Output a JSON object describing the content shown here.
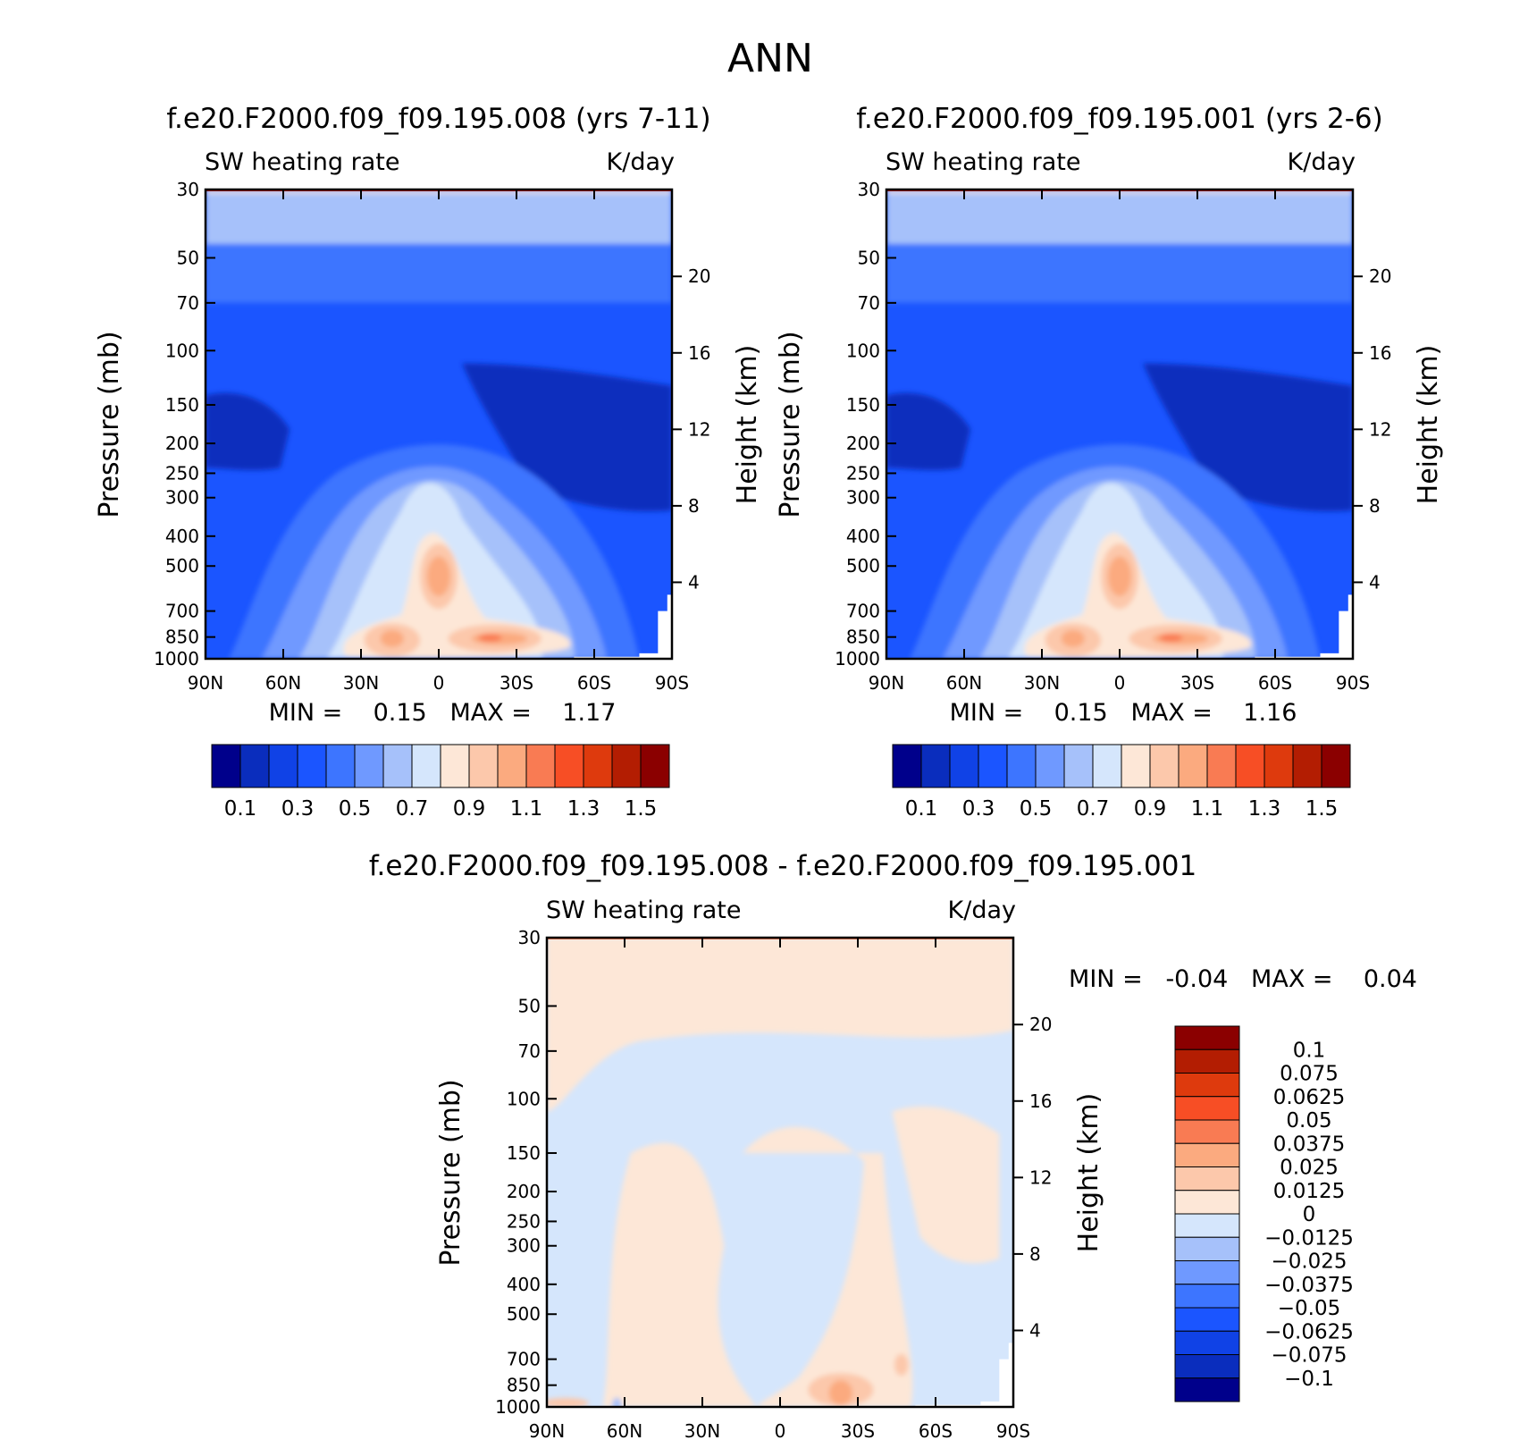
{
  "page_title": "ANN",
  "axes_common": {
    "pressure_ticks": [
      "30",
      "50",
      "70",
      "100",
      "150",
      "200",
      "250",
      "300",
      "400",
      "500",
      "700",
      "850",
      "1000"
    ],
    "height_ticks": [
      "20",
      "16",
      "12",
      "8",
      "4"
    ],
    "lat_ticks": [
      "90N",
      "60N",
      "30N",
      "0",
      "30S",
      "60S",
      "90S"
    ]
  },
  "chart_data": [
    {
      "type": "heatmap",
      "panel": "upper-left",
      "title": "f.e20.F2000.f09_f09.195.008 (yrs 7-11)",
      "left_string": "SW heating rate",
      "right_string": "K/day",
      "xlabel": "",
      "ylabel": "Pressure (mb)",
      "y2label": "Height (km)",
      "min_max_text": "MIN =    0.15   MAX =    1.17",
      "xlim": [
        "90N",
        "90S"
      ],
      "ylim": [
        1000,
        30
      ],
      "y_scale": "log",
      "colorbar": {
        "orientation": "horizontal",
        "labels": [
          "0.1",
          "0.3",
          "0.5",
          "0.7",
          "0.9",
          "1.1",
          "1.3",
          "1.5"
        ],
        "levels": [
          0.1,
          0.2,
          0.3,
          0.4,
          0.5,
          0.6,
          0.7,
          0.8,
          0.9,
          1.0,
          1.1,
          1.2,
          1.3,
          1.4,
          1.5
        ],
        "colors": [
          "#00008b",
          "#0a2dbd",
          "#1042e6",
          "#1b55ff",
          "#3d75ff",
          "#6f99ff",
          "#a6c1fa",
          "#d5e6fc",
          "#fde7d7",
          "#fcc8ab",
          "#fbaa7f",
          "#f97b53",
          "#f74e25",
          "#de3a0d",
          "#b31d02",
          "#8b0000"
        ]
      }
    },
    {
      "type": "heatmap",
      "panel": "upper-right",
      "title": "f.e20.F2000.f09_f09.195.001 (yrs 2-6)",
      "left_string": "SW heating rate",
      "right_string": "K/day",
      "xlabel": "",
      "ylabel": "Pressure (mb)",
      "y2label": "Height (km)",
      "min_max_text": "MIN =    0.15   MAX =    1.16",
      "xlim": [
        "90N",
        "90S"
      ],
      "ylim": [
        1000,
        30
      ],
      "y_scale": "log",
      "colorbar": {
        "orientation": "horizontal",
        "labels": [
          "0.1",
          "0.3",
          "0.5",
          "0.7",
          "0.9",
          "1.1",
          "1.3",
          "1.5"
        ],
        "levels": [
          0.1,
          0.2,
          0.3,
          0.4,
          0.5,
          0.6,
          0.7,
          0.8,
          0.9,
          1.0,
          1.1,
          1.2,
          1.3,
          1.4,
          1.5
        ],
        "colors": [
          "#00008b",
          "#0a2dbd",
          "#1042e6",
          "#1b55ff",
          "#3d75ff",
          "#6f99ff",
          "#a6c1fa",
          "#d5e6fc",
          "#fde7d7",
          "#fcc8ab",
          "#fbaa7f",
          "#f97b53",
          "#f74e25",
          "#de3a0d",
          "#b31d02",
          "#8b0000"
        ]
      }
    },
    {
      "type": "heatmap",
      "panel": "bottom-difference",
      "title": "f.e20.F2000.f09_f09.195.008 - f.e20.F2000.f09_f09.195.001",
      "left_string": "SW heating rate",
      "right_string": "K/day",
      "xlabel": "",
      "ylabel": "Pressure (mb)",
      "y2label": "Height (km)",
      "min_max_text": "MIN =   -0.04   MAX =    0.04",
      "xlim": [
        "90N",
        "90S"
      ],
      "ylim": [
        1000,
        30
      ],
      "y_scale": "log",
      "colorbar": {
        "orientation": "vertical",
        "labels": [
          "0.1",
          "0.075",
          "0.0625",
          "0.05",
          "0.0375",
          "0.025",
          "0.0125",
          "0",
          "-0.0125",
          "-0.025",
          "-0.0375",
          "-0.05",
          "-0.0625",
          "-0.075",
          "-0.1"
        ],
        "colors": [
          "#8b0000",
          "#b31d02",
          "#de3a0d",
          "#f74e25",
          "#f97b53",
          "#fbaa7f",
          "#fcc8ab",
          "#fde7d7",
          "#d5e6fc",
          "#a6c1fa",
          "#6f99ff",
          "#3d75ff",
          "#1b55ff",
          "#1042e6",
          "#0a2dbd",
          "#00008b"
        ]
      }
    }
  ]
}
